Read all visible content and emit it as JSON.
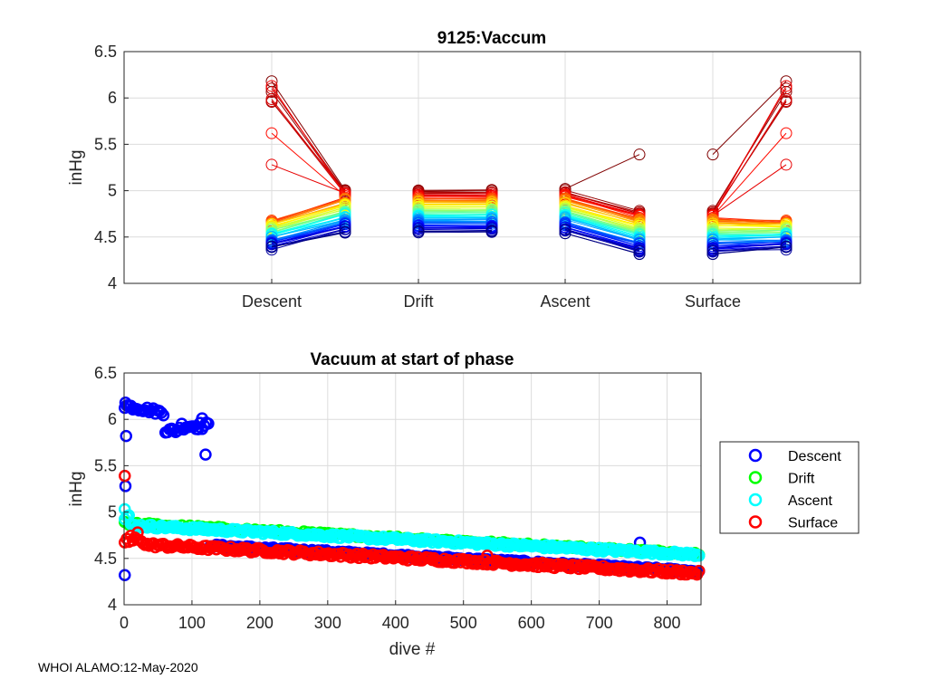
{
  "chart_data": [
    {
      "type": "line",
      "title": "9125:Vaccum",
      "xlabel": "",
      "ylabel": "inHg",
      "ylim": [
        4,
        6.5
      ],
      "yticks": [
        "4",
        "4.5",
        "5",
        "5.5",
        "6",
        "6.5"
      ],
      "categories": [
        "Descent",
        "Drift",
        "Ascent",
        "Surface"
      ],
      "grid": true,
      "colormap": "jet",
      "description_of_series": "one colored line per dive (early dives red/dark red, later dives blue/dark blue); each dive plotted as start/end pairs for Descent, Drift, Ascent, Surface",
      "phase_ranges": {
        "descent_start": [
          4.32,
          6.18
        ],
        "descent_end": [
          4.55,
          5.02
        ],
        "drift": [
          4.55,
          5.02
        ],
        "ascent_start": [
          4.55,
          5.02
        ],
        "ascent_end": [
          4.32,
          5.39
        ],
        "surface_start": [
          4.32,
          5.39
        ],
        "surface_end": [
          4.32,
          6.18
        ]
      }
    },
    {
      "type": "scatter",
      "title": "Vacuum at start of phase",
      "xlabel": "dive #",
      "ylabel": "inHg",
      "xlim": [
        0,
        850
      ],
      "ylim": [
        4,
        6.5
      ],
      "xticks": [
        "0",
        "100",
        "200",
        "300",
        "400",
        "500",
        "600",
        "700",
        "800"
      ],
      "yticks": [
        "4",
        "4.5",
        "5",
        "5.5",
        "6",
        "6.5"
      ],
      "grid": true,
      "legend_position": "outside-right",
      "series": [
        {
          "name": "Descent",
          "color": "#0000ff",
          "trend": "early dives 5.8-6.2 until ~dive 125, then ~4.62 declining to ~4.35 by dive 850"
        },
        {
          "name": "Drift",
          "color": "#00ff00",
          "trend": "~4.9 declining to ~4.55, mostly hidden under Ascent"
        },
        {
          "name": "Ascent",
          "color": "#00ffff",
          "trend": "~5.0 at dive 0, ~4.85 declining to ~4.55 by dive 850"
        },
        {
          "name": "Surface",
          "color": "#ff0000",
          "trend": "5.39 at dive 1, ~4.7 declining to ~4.33 by dive 850"
        }
      ]
    }
  ],
  "footer": "WHOI ALAMO:12-May-2020",
  "colors": {
    "descent": "#0000ff",
    "drift": "#00ff00",
    "ascent": "#00ffff",
    "surface": "#ff0000"
  }
}
